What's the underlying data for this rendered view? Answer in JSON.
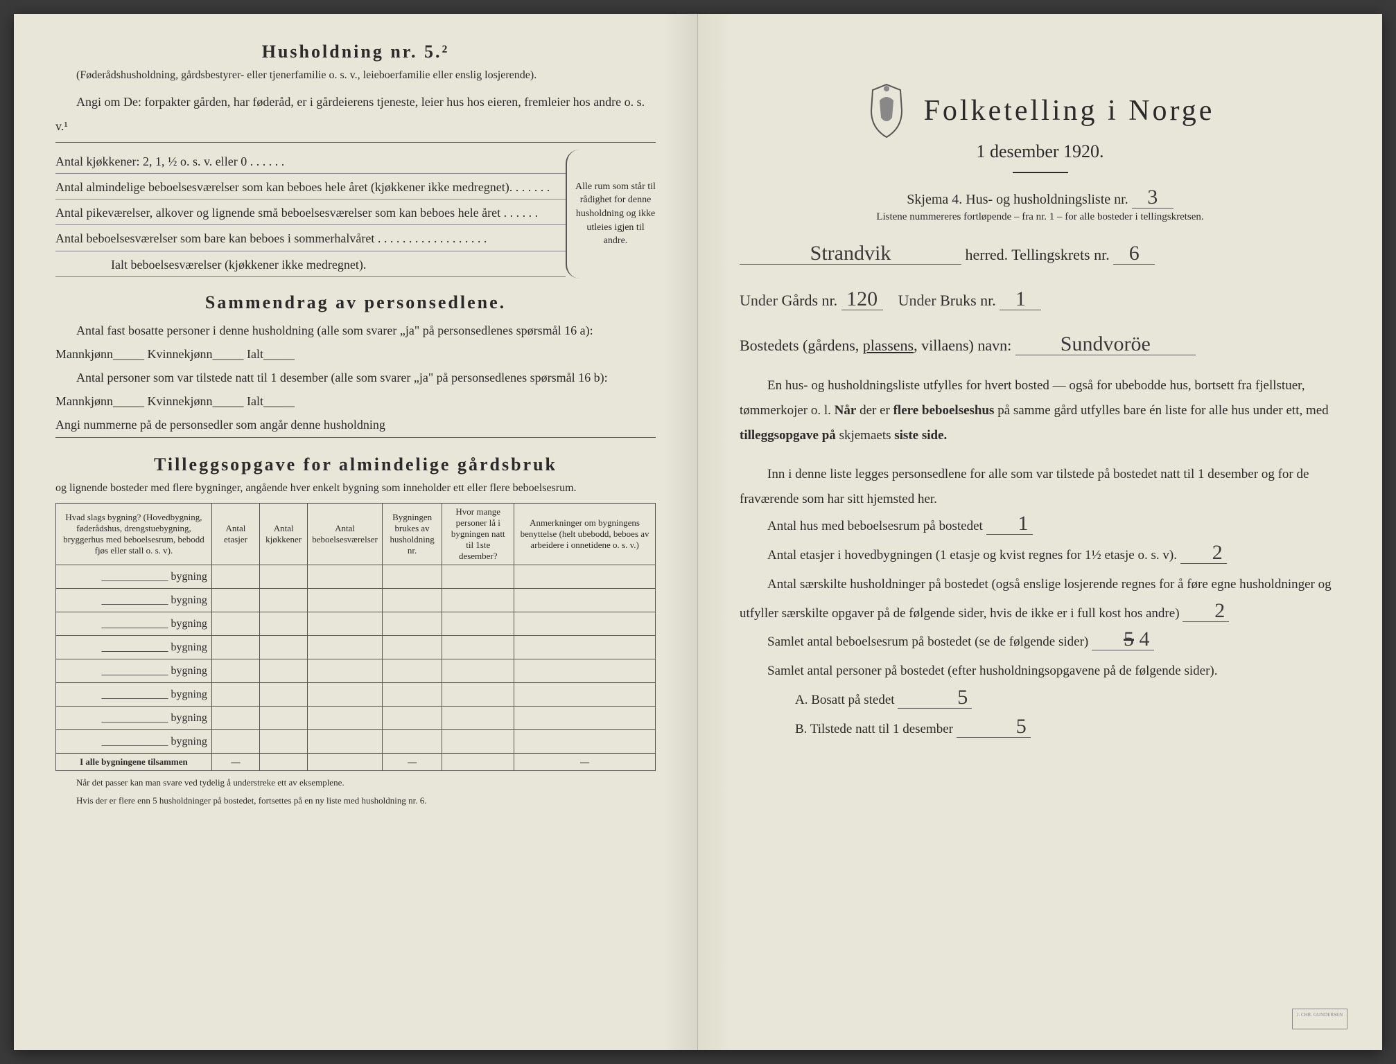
{
  "left": {
    "husholdning_title": "Husholdning nr. 5.²",
    "husholdning_note": "(Føderådshusholdning, gårdsbestyrer- eller tjenerfamilie o. s. v., leieboerfamilie eller enslig losjerende).",
    "angi_line1": "Angi om De:  forpakter gården, har føderåd, er i gårdeierens tjeneste, leier hus hos eieren, fremleier hos andre o. s. v.¹",
    "kjokkener": "Antal kjøkkener: 2, 1, ½ o. s. v. eller 0 . . . . . .",
    "alm_bebo": "Antal almindelige beboelsesværelser som kan beboes hele året (kjøkkener ikke medregnet). . . . . . .",
    "pike": "Antal pikeværelser, alkover og lignende små beboelsesværelser som kan beboes hele året . . . . . .",
    "sommer": "Antal beboelsesværelser som bare kan beboes i sommerhalvåret . . . . . . . . . . . . . . . . . .",
    "ialt": "Ialt beboelsesværelser (kjøkkener ikke medregnet).",
    "brace_text": "Alle rum som står til rådighet for denne husholdning og ikke utleies igjen til andre.",
    "sammendrag_title": "Sammendrag av personsedlene.",
    "sammen_line1": "Antal fast bosatte personer i denne husholdning (alle som svarer „ja\" på personsedlenes spørsmål 16 a): Mannkjønn_____ Kvinnekjønn_____ Ialt_____",
    "sammen_line2": "Antal personer som var tilstede natt til 1 desember (alle som svarer „ja\" på personsedlenes spørsmål 16 b): Mannkjønn_____ Kvinnekjønn_____ Ialt_____",
    "sammen_line3": "Angi nummerne på de personsedler som angår denne husholdning",
    "tillegg_title": "Tilleggsopgave for almindelige gårdsbruk",
    "tillegg_sub": "og lignende bosteder med flere bygninger, angående hver enkelt bygning som inneholder ett eller flere beboelsesrum.",
    "table": {
      "headers": [
        "Hvad slags bygning?\n(Hovedbygning, føderådshus, drengstuebygning, bryggerhus med beboelsesrum, bebodd fjøs eller stall o. s. v).",
        "Antal etasjer",
        "Antal kjøkkener",
        "Antal beboelsesværelser",
        "Bygningen brukes av husholdning nr.",
        "Hvor mange personer lå i bygningen natt til 1ste desember?",
        "Anmerkninger om bygningens benyttelse (helt ubebodd, beboes av arbeidere i onnetidene o. s. v.)"
      ],
      "row_label": "bygning",
      "row_count": 8,
      "sum_label": "I alle bygningene tilsammen"
    },
    "foot1": "Når det passer kan man svare ved tydelig å understreke ett av eksemplene.",
    "foot2": "Hvis der er flere enn 5 husholdninger på bostedet, fortsettes på en ny liste med husholdning nr. 6."
  },
  "right": {
    "main_title": "Folketelling i Norge",
    "date": "1 desember 1920.",
    "skjema": "Skjema 4.  Hus- og husholdningsliste nr.",
    "liste_nr": "3",
    "listene": "Listene nummereres fortløpende – fra nr. 1 – for alle bosteder i tellingskretsen.",
    "herred_fill": "Strandvik",
    "herred_label": "herred.  Tellingskrets nr.",
    "krets_nr": "6",
    "under1": "Under",
    "gards_label": "Gårds nr.",
    "gards_nr": "120",
    "under2": "Under",
    "bruks_label": "Bruks nr.",
    "bruks_nr": "1",
    "bosted_label": "Bostedets (gårdens, plassens, villaens) navn:",
    "bosted_name": "Sundvoröe",
    "para1": "En hus- og husholdningsliste utfylles for hvert bosted — også for ubebodde hus, bortsett fra fjellstuer, tømmerkojer o. l.  Når der er flere beboelseshus på samme gård utfylles bare én liste for alle hus under ett, med tilleggsopgave på skjemaets siste side.",
    "para2": "Inn i denne liste legges personsedlene for alle som var tilstede på bostedet natt til 1 desember og for de fraværende som har sitt hjemsted her.",
    "q1": "Antal hus med beboelsesrum på bostedet",
    "q1_ans": "1",
    "q2a": "Antal etasjer i hovedbygningen (1 etasje og kvist regnes for 1½ etasje o. s. v).",
    "q2_ans": "2",
    "q3": "Antal særskilte husholdninger på bostedet (også enslige losjerende regnes for å føre egne husholdninger og utfyller særskilte opgaver på de følgende sider, hvis de ikke er i full kost hos andre)",
    "q3_ans": "2",
    "q4": "Samlet antal beboelsesrum på bostedet (se de følgende sider)",
    "q4_ans_struck": "5",
    "q4_ans": "4",
    "q5": "Samlet antal personer på bostedet (efter husholdningsopgavene på de følgende sider).",
    "qA": "A.  Bosatt på stedet",
    "qA_ans": "5",
    "qB": "B.  Tilstede natt til 1 desember",
    "qB_ans": "5",
    "stamp": "J. CHR. GUNDERSEN"
  },
  "colors": {
    "paper": "#e8e6d8",
    "ink": "#2a2a2a",
    "pencil": "#3a3a3a"
  }
}
